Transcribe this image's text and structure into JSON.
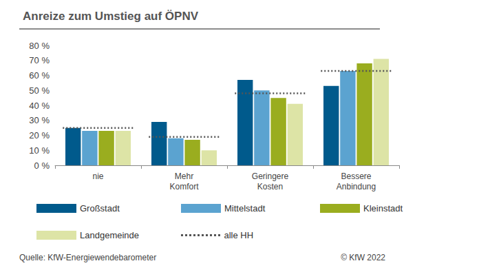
{
  "chart_data": {
    "type": "bar",
    "title": "Anreize zum Umstieg auf ÖPNV",
    "annotations": [
      "Quelle: KfW-Energiewendebarometer",
      "© KfW 2022"
    ],
    "categories": [
      "nie",
      "Mehr Komfort",
      "Geringere Kosten",
      "Bessere Anbindung"
    ],
    "series": [
      {
        "name": "Großstadt",
        "color": "#005a8c",
        "values": [
          25,
          29,
          57,
          53
        ]
      },
      {
        "name": "Mittelstadt",
        "color": "#5ba3d0",
        "values": [
          23,
          18,
          50,
          63
        ]
      },
      {
        "name": "Kleinstadt",
        "color": "#9aad1f",
        "values": [
          23,
          17,
          45,
          68
        ]
      },
      {
        "name": "Landgemeinde",
        "color": "#dde4a6",
        "values": [
          23,
          10,
          41,
          71
        ]
      },
      {
        "name": "alle HH",
        "type": "line",
        "line_style": "dotted",
        "color": "#555555",
        "values": [
          25,
          19,
          48,
          63
        ]
      }
    ],
    "ylim": [
      0,
      80
    ],
    "yticks": [
      {
        "value": 0,
        "label": "0 %"
      },
      {
        "value": 10,
        "label": "10 %"
      },
      {
        "value": 20,
        "label": "20 %"
      },
      {
        "value": 30,
        "label": "30 %"
      },
      {
        "value": 40,
        "label": "40 %"
      },
      {
        "value": 50,
        "label": "50 %"
      },
      {
        "value": 60,
        "label": "60 %"
      },
      {
        "value": 70,
        "label": "70 %"
      },
      {
        "value": 80,
        "label": "80 %"
      }
    ],
    "grid": false,
    "legend": "bottom"
  }
}
